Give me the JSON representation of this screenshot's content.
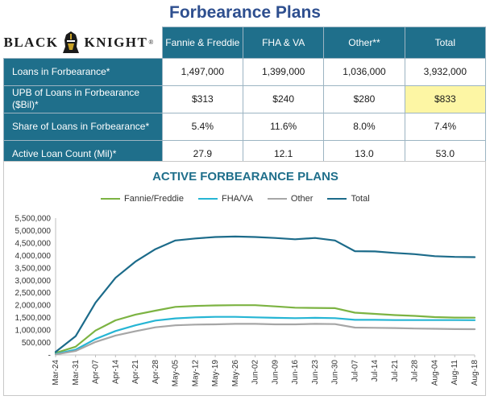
{
  "page": {
    "title": "Forbearance Plans"
  },
  "logo": {
    "left_text": "BLACK",
    "right_text": "KNIGHT",
    "reg_mark": "®"
  },
  "table": {
    "columns": [
      "Fannie & Freddie",
      "FHA & VA",
      "Other**",
      "Total"
    ],
    "rows": [
      {
        "label": "Loans in Forbearance*",
        "values": [
          "1,497,000",
          "1,399,000",
          "1,036,000",
          "3,932,000"
        ]
      },
      {
        "label": "UPB of Loans in Forbearance ($Bil)*",
        "values": [
          "$313",
          "$240",
          "$280",
          "$833"
        ]
      },
      {
        "label": "Share of Loans in Forbearance*",
        "values": [
          "5.4%",
          "11.6%",
          "8.0%",
          "7.4%"
        ]
      },
      {
        "label": "Active Loan Count (Mil)*",
        "values": [
          "27.9",
          "12.1",
          "13.0",
          "53.0"
        ]
      }
    ],
    "highlight_color": "#fdf6a4"
  },
  "chart_data": {
    "type": "line",
    "title": "ACTIVE FORBEARANCE PLANS",
    "ylim": [
      0,
      5500000
    ],
    "yticks": [
      0,
      500000,
      1000000,
      1500000,
      2000000,
      2500000,
      3000000,
      3500000,
      4000000,
      4500000,
      5000000,
      5500000
    ],
    "ytick_labels": [
      "-",
      "500,000",
      "1,000,000",
      "1,500,000",
      "2,000,000",
      "2,500,000",
      "3,000,000",
      "3,500,000",
      "4,000,000",
      "4,500,000",
      "5,000,000",
      "5,500,000"
    ],
    "x_tick_labels": [
      "Mar-24",
      "Mar-31",
      "Apr-07",
      "Apr-14",
      "Apr-21",
      "Apr-28",
      "May-05",
      "May-12",
      "May-19",
      "May-26",
      "Jun-02",
      "Jun-09",
      "Jun-16",
      "Jun-23",
      "Jun-30",
      "Jul-07",
      "Jul-14",
      "Jul-21",
      "Jul-28",
      "Aug-04",
      "Aug-11",
      "Aug-18"
    ],
    "grid": false,
    "legend_position": "top",
    "series": [
      {
        "name": "Fannie/Freddie",
        "color": "#7cb342",
        "values": [
          80000,
          330000,
          980000,
          1390000,
          1620000,
          1780000,
          1930000,
          1970000,
          1990000,
          2000000,
          2000000,
          1950000,
          1900000,
          1890000,
          1880000,
          1700000,
          1650000,
          1600000,
          1570000,
          1520000,
          1500000,
          1497000
        ]
      },
      {
        "name": "FHA/VA",
        "color": "#26b5d4",
        "values": [
          40000,
          210000,
          640000,
          960000,
          1190000,
          1380000,
          1470000,
          1510000,
          1530000,
          1530000,
          1510000,
          1490000,
          1480000,
          1490000,
          1480000,
          1410000,
          1410000,
          1400000,
          1400000,
          1400000,
          1400000,
          1399000
        ]
      },
      {
        "name": "Other",
        "color": "#a6a6a6",
        "values": [
          20000,
          160000,
          520000,
          780000,
          950000,
          1110000,
          1190000,
          1220000,
          1230000,
          1250000,
          1250000,
          1230000,
          1230000,
          1250000,
          1240000,
          1100000,
          1090000,
          1080000,
          1060000,
          1050000,
          1040000,
          1036000
        ]
      },
      {
        "name": "Total",
        "color": "#1c6b8a",
        "values": [
          120000,
          750000,
          2100000,
          3100000,
          3750000,
          4250000,
          4600000,
          4680000,
          4740000,
          4760000,
          4740000,
          4700000,
          4650000,
          4700000,
          4600000,
          4170000,
          4160000,
          4100000,
          4050000,
          3970000,
          3940000,
          3932000
        ]
      }
    ]
  }
}
